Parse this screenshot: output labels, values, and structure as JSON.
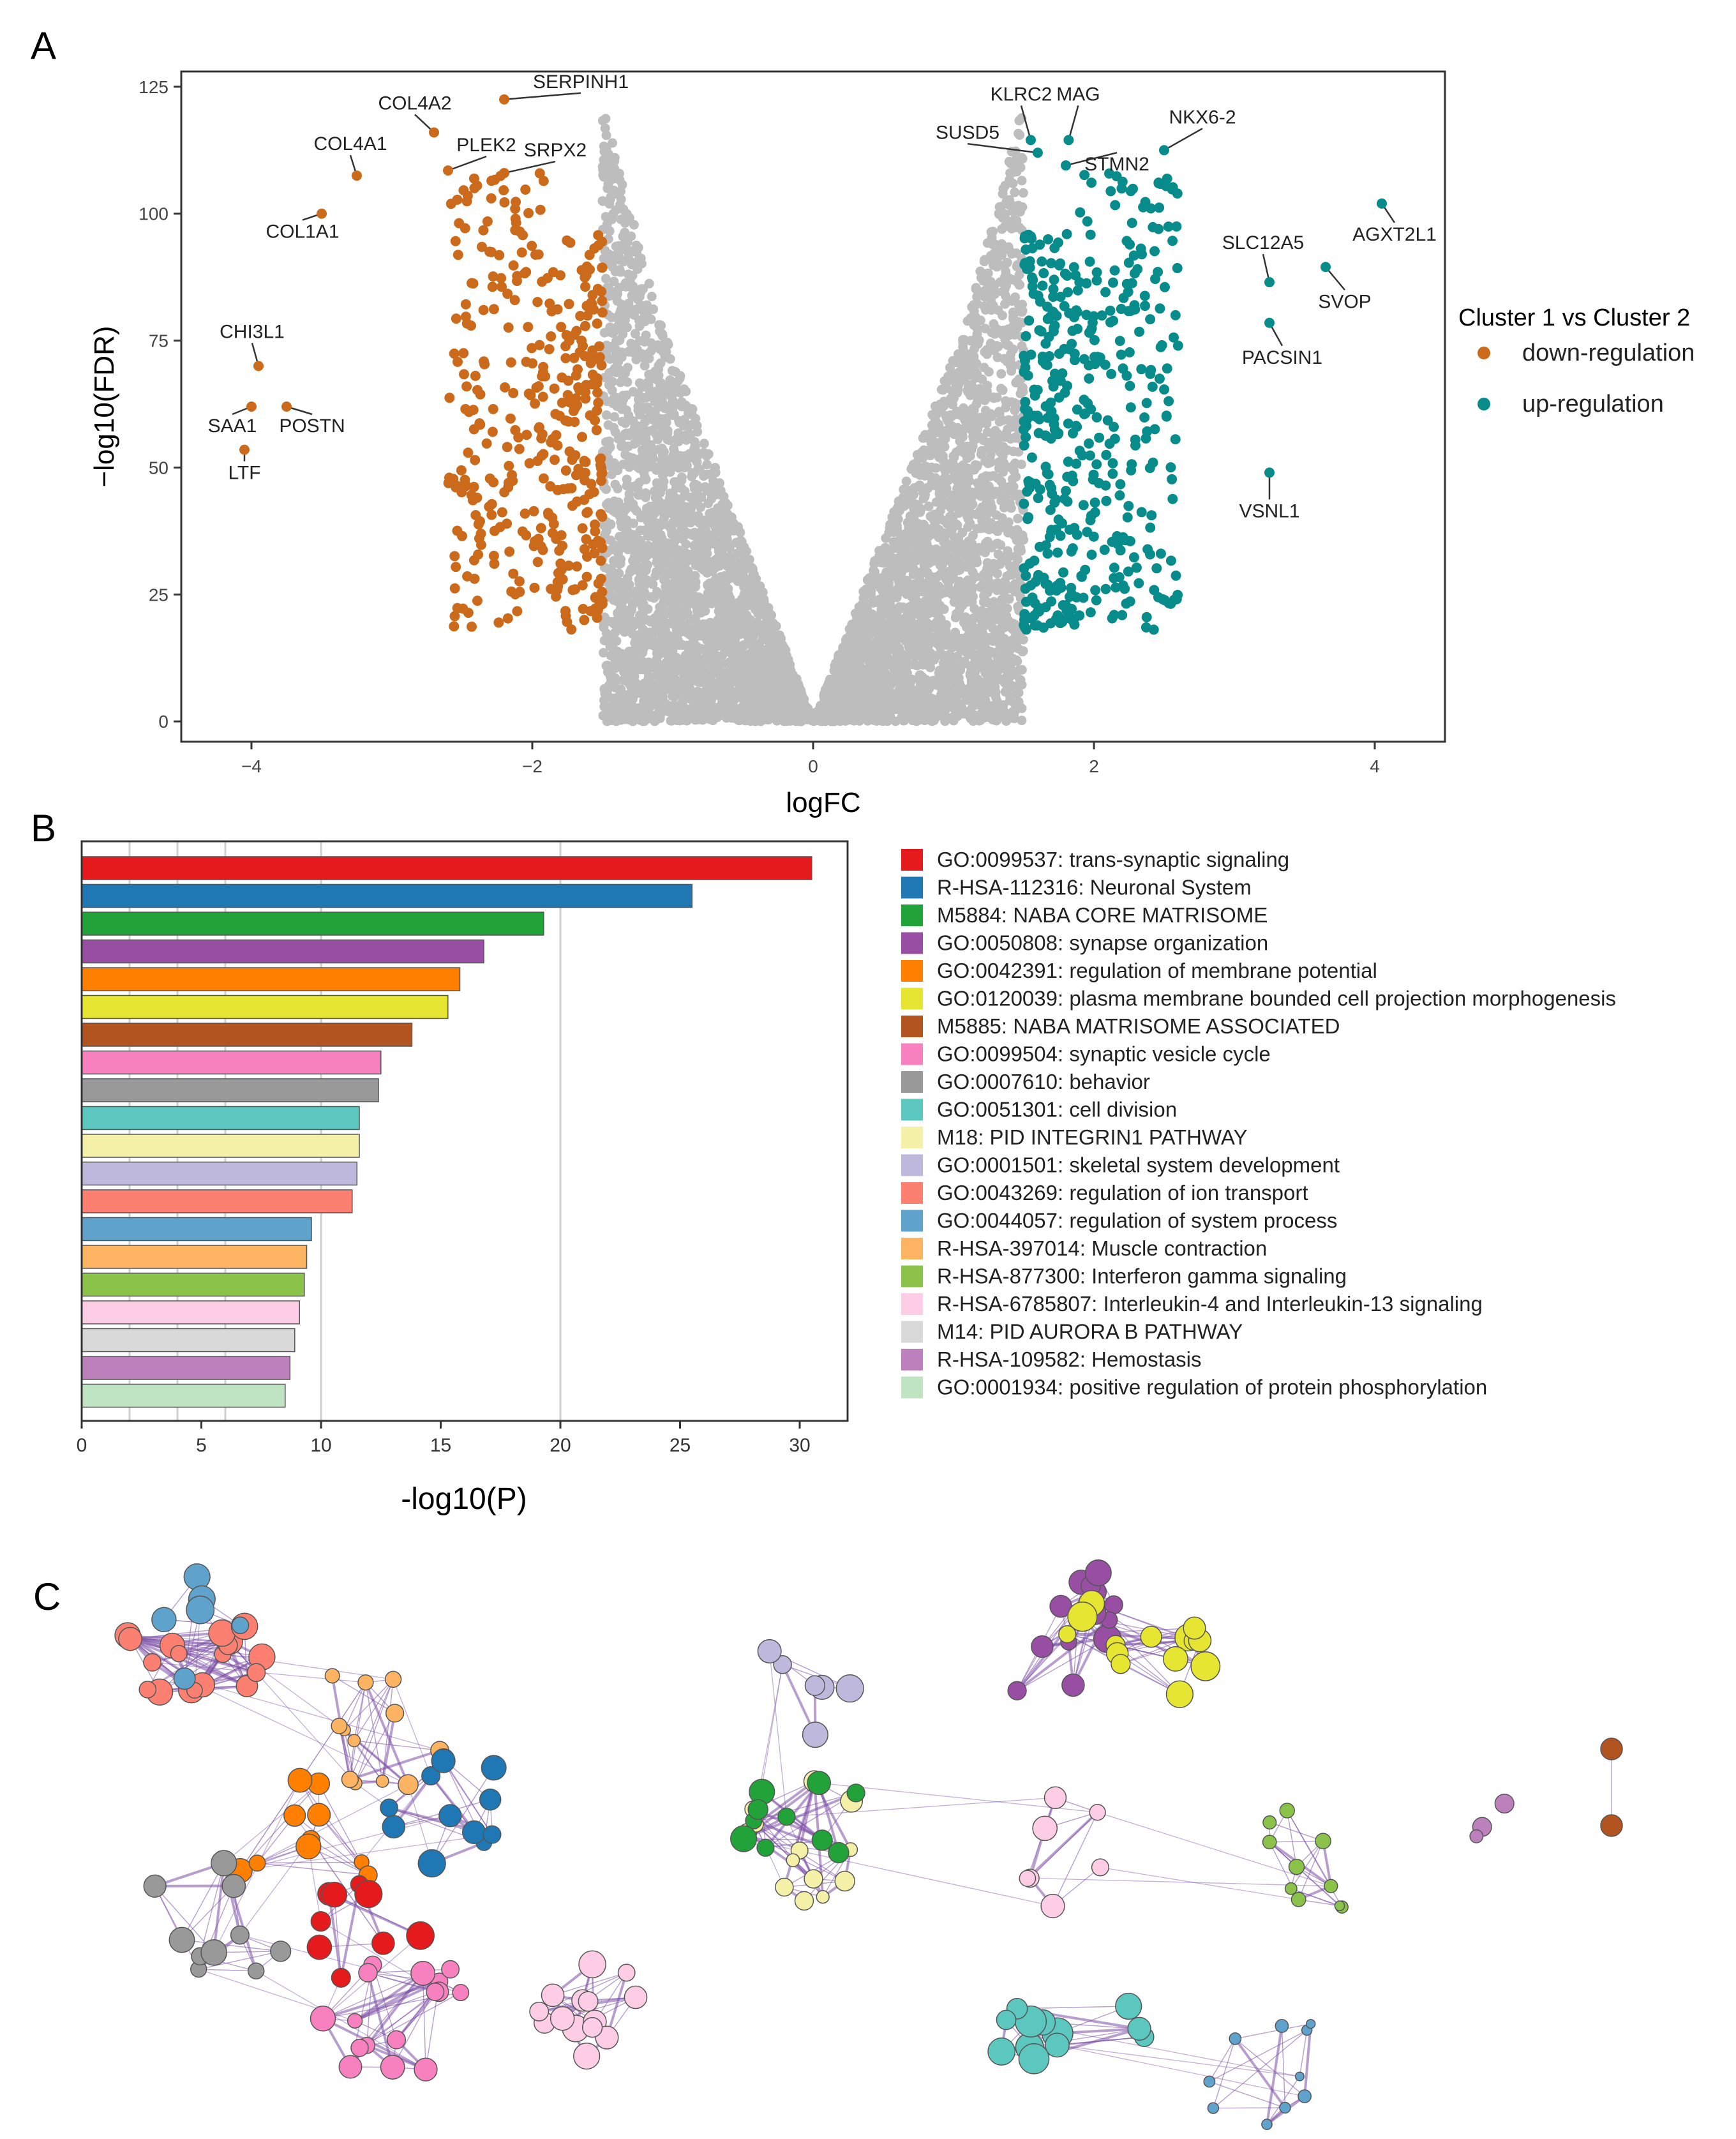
{
  "panel_labels": {
    "a": "A",
    "b": "B",
    "c": "C"
  },
  "colors": {
    "down": "#cc6a1c",
    "up": "#078b8b",
    "ns": "#bdbdbd",
    "axis": "#222222",
    "edge": "#7b4fa6"
  },
  "chart_data": [
    {
      "type": "scatter",
      "subtype": "volcano",
      "title": "",
      "xlabel": "logFC",
      "ylabel": "−log10(FDR)",
      "xlim": [
        -4.5,
        4.5
      ],
      "ylim": [
        -4,
        128
      ],
      "x_ticks": [
        -4,
        -2,
        0,
        2,
        4
      ],
      "x_tick_labels": [
        "−4",
        "−2",
        "0",
        "2",
        "4"
      ],
      "y_ticks": [
        0,
        25,
        50,
        75,
        100,
        125
      ],
      "y_tick_labels": [
        "0",
        "25",
        "50",
        "75",
        "100",
        "125"
      ],
      "legend": {
        "title": "Cluster 1 vs Cluster 2",
        "position": "right",
        "entries": [
          {
            "label": "down-regulation",
            "color": "#cc6a1c"
          },
          {
            "label": "up-regulation",
            "color": "#078b8b"
          }
        ]
      },
      "thresholds": {
        "down_logfc": -1.5,
        "up_logfc": 1.5
      },
      "labeled_points": [
        {
          "gene": "SERPINH1",
          "x": -2.2,
          "y": 122.5,
          "group": "down"
        },
        {
          "gene": "COL4A2",
          "x": -2.7,
          "y": 116,
          "group": "down"
        },
        {
          "gene": "COL4A1",
          "x": -3.25,
          "y": 107.5,
          "group": "down"
        },
        {
          "gene": "PLEK2",
          "x": -2.6,
          "y": 108.5,
          "group": "down"
        },
        {
          "gene": "SRPX2",
          "x": -2.2,
          "y": 108,
          "group": "down"
        },
        {
          "gene": "COL1A1",
          "x": -3.5,
          "y": 100,
          "group": "down"
        },
        {
          "gene": "CHI3L1",
          "x": -3.95,
          "y": 70,
          "group": "down"
        },
        {
          "gene": "SAA1",
          "x": -4.0,
          "y": 62,
          "group": "down"
        },
        {
          "gene": "POSTN",
          "x": -3.75,
          "y": 62,
          "group": "down"
        },
        {
          "gene": "LTF",
          "x": -4.05,
          "y": 53.5,
          "group": "down"
        },
        {
          "gene": "KLRC2",
          "x": 1.55,
          "y": 114.5,
          "group": "up"
        },
        {
          "gene": "MAG",
          "x": 1.82,
          "y": 114.5,
          "group": "up"
        },
        {
          "gene": "SUSD5",
          "x": 1.6,
          "y": 112,
          "group": "up"
        },
        {
          "gene": "STMN2",
          "x": 1.8,
          "y": 109.5,
          "group": "up"
        },
        {
          "gene": "NKX6-2",
          "x": 2.5,
          "y": 112.5,
          "group": "up"
        },
        {
          "gene": "AGXT2L1",
          "x": 4.05,
          "y": 102,
          "group": "up"
        },
        {
          "gene": "SVOP",
          "x": 3.65,
          "y": 89.5,
          "group": "up"
        },
        {
          "gene": "SLC12A5",
          "x": 3.25,
          "y": 86.5,
          "group": "up"
        },
        {
          "gene": "PACSIN1",
          "x": 3.25,
          "y": 78.5,
          "group": "up"
        },
        {
          "gene": "VSNL1",
          "x": 3.25,
          "y": 49,
          "group": "up"
        }
      ]
    },
    {
      "type": "bar",
      "orientation": "horizontal",
      "title": "",
      "xlabel": "-log10(P)",
      "ylabel": "",
      "xlim": [
        0,
        32
      ],
      "x_ticks": [
        0,
        5,
        10,
        15,
        20,
        25,
        30
      ],
      "x_tick_labels": [
        "0",
        "5",
        "10",
        "15",
        "20",
        "25",
        "30"
      ],
      "legend": {
        "position": "right"
      },
      "categories": [
        "GO:0099537: trans-synaptic signaling",
        "R-HSA-112316: Neuronal System",
        "M5884: NABA CORE MATRISOME",
        "GO:0050808: synapse organization",
        "GO:0042391: regulation of membrane potential",
        "GO:0120039: plasma membrane bounded cell projection morphogenesis",
        "M5885: NABA MATRISOME ASSOCIATED",
        "GO:0099504: synaptic vesicle cycle",
        "GO:0007610: behavior",
        "GO:0051301: cell division",
        "M18: PID INTEGRIN1 PATHWAY",
        "GO:0001501: skeletal system development",
        "GO:0043269: regulation of ion transport",
        "GO:0044057: regulation of system process",
        "R-HSA-397014: Muscle contraction",
        "R-HSA-877300: Interferon gamma signaling",
        "R-HSA-6785807: Interleukin-4 and Interleukin-13 signaling",
        "M14: PID AURORA B PATHWAY",
        "R-HSA-109582: Hemostasis",
        "GO:0001934: positive regulation of protein phosphorylation"
      ],
      "values": [
        30.5,
        25.5,
        19.3,
        16.8,
        15.8,
        15.3,
        13.8,
        12.5,
        12.4,
        11.6,
        11.6,
        11.5,
        11.3,
        9.6,
        9.4,
        9.3,
        9.1,
        8.9,
        8.7,
        8.5
      ],
      "bar_colors": [
        "#e41a1c",
        "#1f78b4",
        "#22a339",
        "#984ea3",
        "#ff7f00",
        "#e6e632",
        "#b2541f",
        "#f781bf",
        "#999999",
        "#5cc7bf",
        "#f4f0a8",
        "#beb8dd",
        "#fb8072",
        "#5fa2cc",
        "#fdb462",
        "#8bc34a",
        "#fccde5",
        "#d9d9d9",
        "#bc80bd",
        "#bfe4c2"
      ]
    }
  ]
}
